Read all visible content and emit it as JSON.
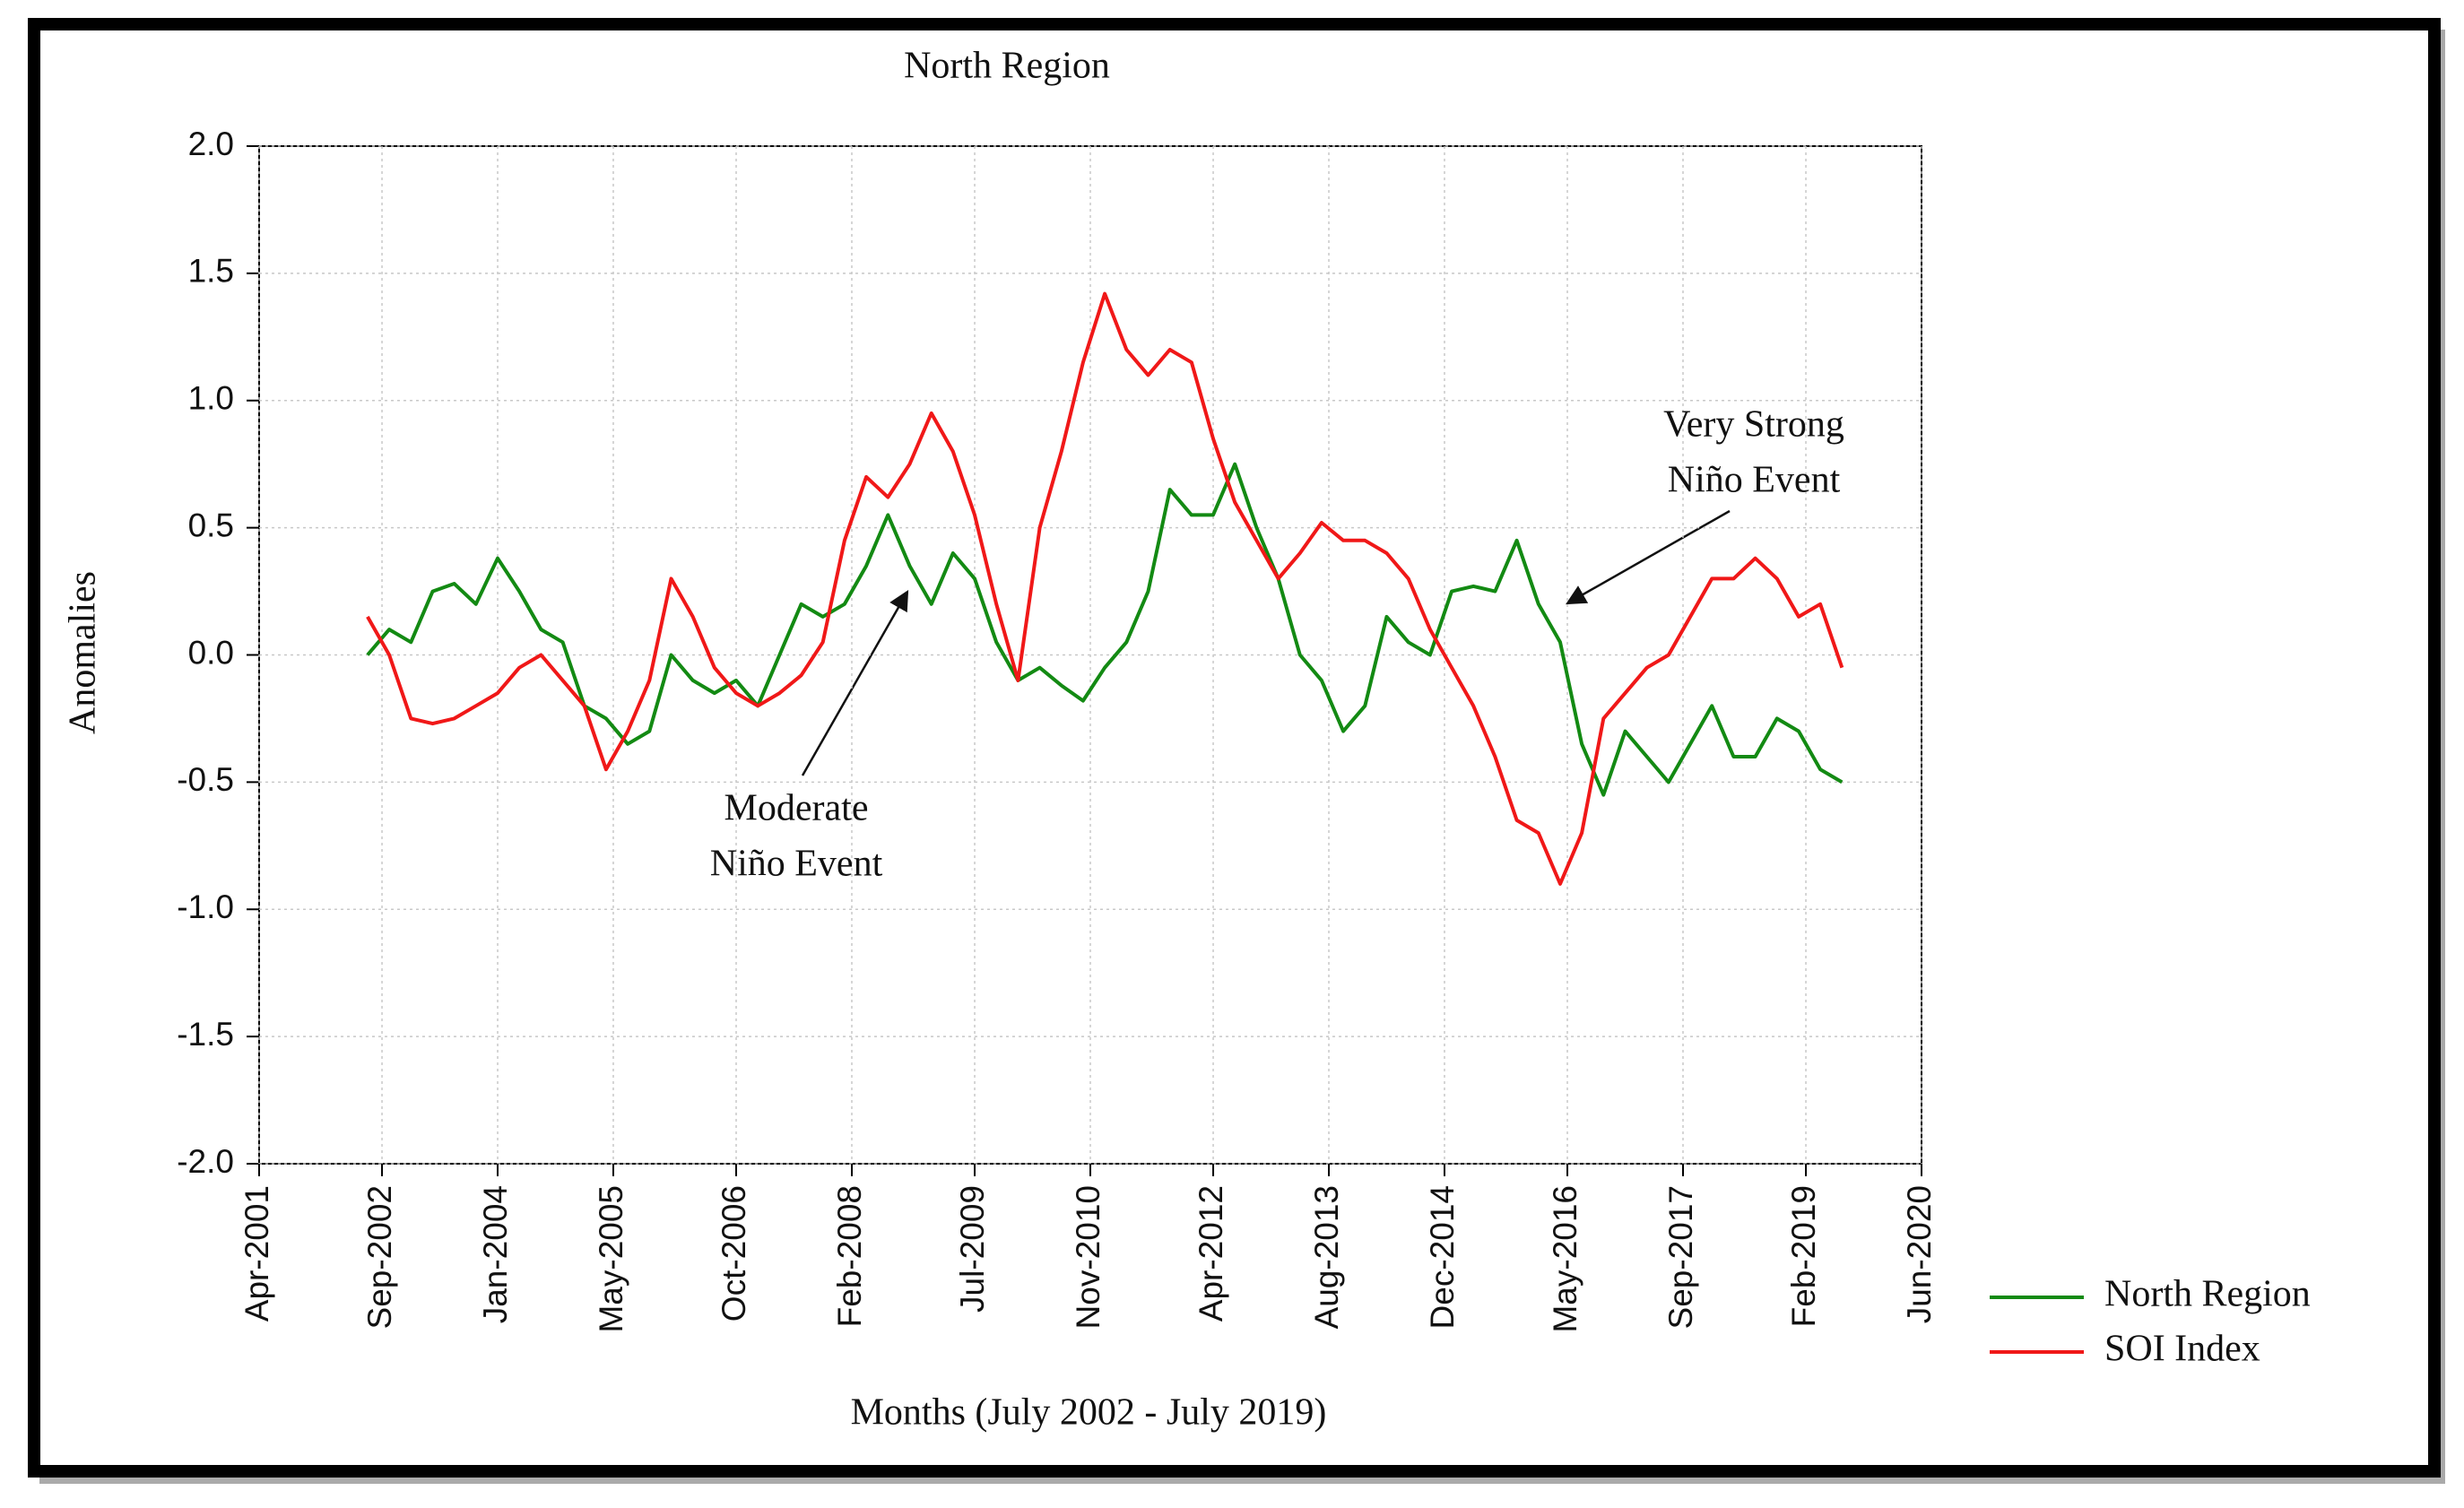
{
  "chart_data": {
    "type": "line",
    "title": "North Region",
    "x_label": "Months (July 2002 - July 2019)",
    "y_label": "Anomalies",
    "x": [
      "2002-07",
      "2002-10",
      "2003-01",
      "2003-04",
      "2003-07",
      "2003-10",
      "2004-01",
      "2004-04",
      "2004-07",
      "2004-10",
      "2005-01",
      "2005-04",
      "2005-07",
      "2005-10",
      "2006-01",
      "2006-04",
      "2006-07",
      "2006-10",
      "2007-01",
      "2007-04",
      "2007-07",
      "2007-10",
      "2008-01",
      "2008-04",
      "2008-07",
      "2008-10",
      "2009-01",
      "2009-04",
      "2009-07",
      "2009-10",
      "2010-01",
      "2010-04",
      "2010-07",
      "2010-10",
      "2011-01",
      "2011-04",
      "2011-07",
      "2011-10",
      "2012-01",
      "2012-04",
      "2012-07",
      "2012-10",
      "2013-01",
      "2013-04",
      "2013-07",
      "2013-10",
      "2014-01",
      "2014-04",
      "2014-07",
      "2014-10",
      "2015-01",
      "2015-04",
      "2015-07",
      "2015-10",
      "2016-01",
      "2016-04",
      "2016-07",
      "2016-10",
      "2017-01",
      "2017-04",
      "2017-07",
      "2017-10",
      "2018-01",
      "2018-04",
      "2018-07",
      "2018-10",
      "2019-01",
      "2019-04",
      "2019-07"
    ],
    "series": [
      {
        "name": "North Region",
        "color": "#138a13",
        "values": [
          0.0,
          0.1,
          0.05,
          0.25,
          0.28,
          0.2,
          0.38,
          0.25,
          0.1,
          0.05,
          -0.2,
          -0.25,
          -0.35,
          -0.3,
          0.0,
          -0.1,
          -0.15,
          -0.1,
          -0.2,
          0.0,
          0.2,
          0.15,
          0.2,
          0.35,
          0.55,
          0.35,
          0.2,
          0.4,
          0.3,
          0.05,
          -0.1,
          -0.05,
          -0.12,
          -0.18,
          -0.05,
          0.05,
          0.25,
          0.65,
          0.55,
          0.55,
          0.75,
          0.5,
          0.3,
          0.0,
          -0.1,
          -0.3,
          -0.2,
          0.15,
          0.05,
          0.0,
          0.25,
          0.27,
          0.25,
          0.45,
          0.2,
          0.05,
          -0.35,
          -0.55,
          -0.3,
          -0.4,
          -0.5,
          -0.35,
          -0.2,
          -0.4,
          -0.4,
          -0.25,
          -0.3,
          -0.45,
          -0.5
        ]
      },
      {
        "name": "SOI Index",
        "color": "#f01818",
        "values": [
          0.15,
          0.0,
          -0.25,
          -0.27,
          -0.25,
          -0.2,
          -0.15,
          -0.05,
          0.0,
          -0.1,
          -0.2,
          -0.45,
          -0.3,
          -0.1,
          0.3,
          0.15,
          -0.05,
          -0.15,
          -0.2,
          -0.15,
          -0.08,
          0.05,
          0.45,
          0.7,
          0.62,
          0.75,
          0.95,
          0.8,
          0.55,
          0.2,
          -0.1,
          0.5,
          0.8,
          1.15,
          1.42,
          1.2,
          1.1,
          1.2,
          1.15,
          0.85,
          0.6,
          0.45,
          0.3,
          0.4,
          0.52,
          0.45,
          0.45,
          0.4,
          0.3,
          0.1,
          -0.05,
          -0.2,
          -0.4,
          -0.65,
          -0.7,
          -0.9,
          -0.7,
          -0.25,
          -0.15,
          -0.05,
          0.0,
          0.15,
          0.3,
          0.3,
          0.38,
          0.3,
          0.15,
          0.2,
          -0.05
        ]
      }
    ],
    "xlim": [
      "2001-04",
      "2020-06"
    ],
    "xticks": [
      {
        "value": "2001-04",
        "label": "Apr-2001"
      },
      {
        "value": "2002-09",
        "label": "Sep-2002"
      },
      {
        "value": "2004-01",
        "label": "Jan-2004"
      },
      {
        "value": "2005-05",
        "label": "May-2005"
      },
      {
        "value": "2006-10",
        "label": "Oct-2006"
      },
      {
        "value": "2008-02",
        "label": "Feb-2008"
      },
      {
        "value": "2009-07",
        "label": "Jul-2009"
      },
      {
        "value": "2010-11",
        "label": "Nov-2010"
      },
      {
        "value": "2012-04",
        "label": "Apr-2012"
      },
      {
        "value": "2013-08",
        "label": "Aug-2013"
      },
      {
        "value": "2014-12",
        "label": "Dec-2014"
      },
      {
        "value": "2016-05",
        "label": "May-2016"
      },
      {
        "value": "2017-09",
        "label": "Sep-2017"
      },
      {
        "value": "2019-02",
        "label": "Feb-2019"
      },
      {
        "value": "2020-06",
        "label": "Jun-2020"
      }
    ],
    "ylim": [
      -2,
      2
    ],
    "yticks": [
      {
        "value": -2,
        "label": "-2.0"
      },
      {
        "value": -1.5,
        "label": "-1.5"
      },
      {
        "value": -1,
        "label": "-1.0"
      },
      {
        "value": -0.5,
        "label": "-0.5"
      },
      {
        "value": 0,
        "label": "0.0"
      },
      {
        "value": 0.5,
        "label": "0.5"
      },
      {
        "value": 1,
        "label": "1.0"
      },
      {
        "value": 1.5,
        "label": "1.5"
      },
      {
        "value": 2,
        "label": "2.0"
      }
    ],
    "grid": true,
    "legend": "right",
    "annotations": [
      {
        "lines": [
          "Moderate",
          "Niño Event"
        ]
      },
      {
        "lines": [
          "Very Strong",
          "Niño Event"
        ]
      }
    ]
  }
}
